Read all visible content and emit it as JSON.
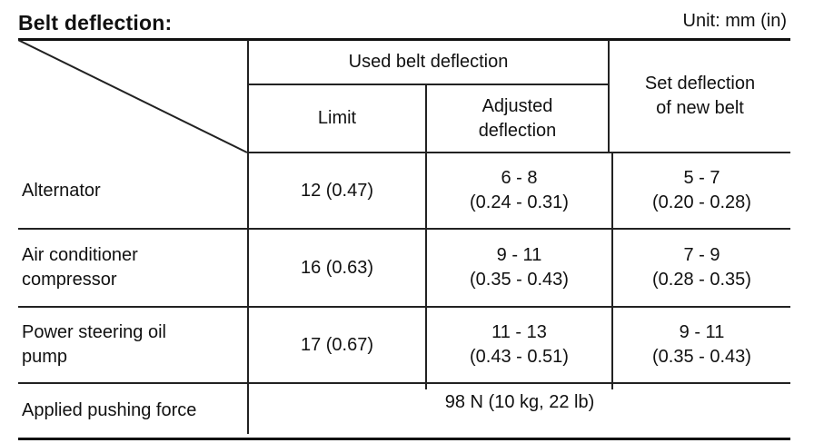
{
  "title": "Belt deflection:",
  "unit": "Unit:  mm (in)",
  "headers": {
    "used": "Used belt deflection",
    "limit": "Limit",
    "adjusted": [
      "Adjusted",
      "deflection"
    ],
    "set": [
      "Set deflection",
      "of new belt"
    ]
  },
  "rows": [
    {
      "label": [
        "Alternator"
      ],
      "limit": "12 (0.47)",
      "adjusted": [
        "6 - 8",
        "(0.24 - 0.31)"
      ],
      "set": [
        "5 - 7",
        "(0.20 - 0.28)"
      ]
    },
    {
      "label": [
        "Air conditioner",
        "compressor"
      ],
      "limit": "16 (0.63)",
      "adjusted": [
        "9 - 11",
        "(0.35 - 0.43)"
      ],
      "set": [
        "7 - 9",
        "(0.28 - 0.35)"
      ]
    },
    {
      "label": [
        "Power steering oil",
        "pump"
      ],
      "limit": "17 (0.67)",
      "adjusted": [
        "11 - 13",
        "(0.43 - 0.51)"
      ],
      "set": [
        "9 - 11",
        "(0.35 - 0.43)"
      ]
    }
  ],
  "force": {
    "label": "Applied pushing force",
    "value": "98 N (10 kg, 22 lb)"
  }
}
